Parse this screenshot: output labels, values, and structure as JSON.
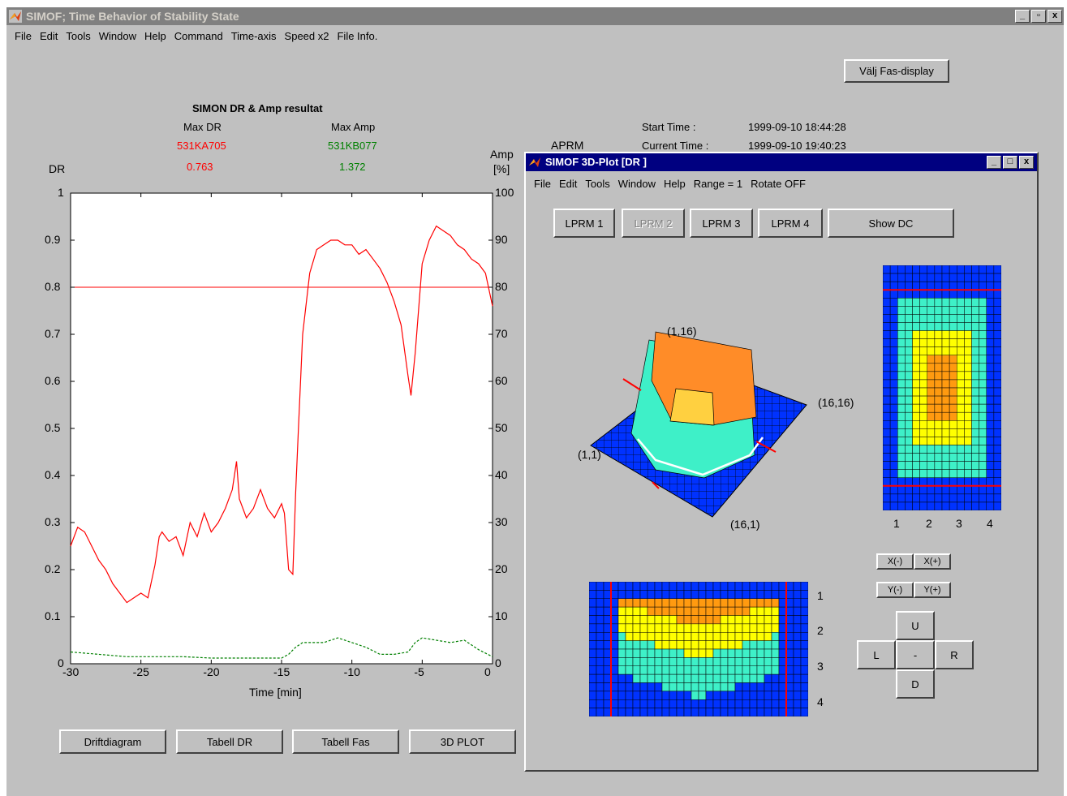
{
  "window": {
    "title": "SIMOF;    Time Behavior of Stability State",
    "controls": [
      "_",
      "▫",
      "x"
    ]
  },
  "menu": [
    "File",
    "Edit",
    "Tools",
    "Window",
    "Help",
    "Command",
    "Time-axis",
    "Speed x2",
    "File Info."
  ],
  "fas_button": "Välj Fas-display",
  "header": {
    "title": "SIMON DR & Amp resultat",
    "max_dr_label": "Max DR",
    "max_dr_channel": "531KA705",
    "max_dr_value": "0.763",
    "max_amp_label": "Max Amp",
    "max_amp_channel": "531KB077",
    "max_amp_value": "1.372",
    "aprm": "APRM",
    "start_label": "Start   Time :",
    "start_value": "1999-09-10 18:44:28",
    "current_label": "Current  Time :",
    "current_value": "1999-09-10 19:40:23"
  },
  "chart_data": {
    "type": "line",
    "xlabel": "Time [min]",
    "ylabel_left": "DR",
    "ylabel_right_1": "Amp",
    "ylabel_right_2": "[%]",
    "xlim": [
      -30,
      0
    ],
    "ylim": [
      0,
      1
    ],
    "ylim_right": [
      0,
      100
    ],
    "x_ticks": [
      "-30",
      "-25",
      "-20",
      "-15",
      "-10",
      "-5",
      "0"
    ],
    "y_ticks": [
      "0",
      "0.1",
      "0.2",
      "0.3",
      "0.4",
      "0.5",
      "0.6",
      "0.7",
      "0.8",
      "0.9",
      "1"
    ],
    "y_ticks_right": [
      "0",
      "10",
      "20",
      "30",
      "40",
      "50",
      "60",
      "70",
      "80",
      "90",
      "100"
    ],
    "threshold": 0.8,
    "series": [
      {
        "color": "#ff0000",
        "style": "solid",
        "x": [
          -30,
          -29.5,
          -29,
          -28.5,
          -28,
          -27.5,
          -27,
          -26.5,
          -26,
          -25.5,
          -25,
          -24.5,
          -24,
          -23.7,
          -23.5,
          -23,
          -22.5,
          -22,
          -21.5,
          -21,
          -20.5,
          -20,
          -19.5,
          -19,
          -18.5,
          -18.2,
          -18,
          -17.5,
          -17,
          -16.5,
          -16,
          -15.5,
          -15,
          -14.8,
          -14.5,
          -14.2,
          -14,
          -13.8,
          -13.5,
          -13,
          -12.5,
          -12,
          -11.5,
          -11,
          -10.5,
          -10,
          -9.5,
          -9,
          -8.5,
          -8,
          -7.5,
          -7,
          -6.5,
          -6,
          -5.8,
          -5.5,
          -5,
          -4.5,
          -4,
          -3.5,
          -3,
          -2.5,
          -2,
          -1.5,
          -1,
          -0.5,
          0
        ],
        "y": [
          0.25,
          0.29,
          0.28,
          0.25,
          0.22,
          0.2,
          0.17,
          0.15,
          0.13,
          0.14,
          0.15,
          0.14,
          0.21,
          0.27,
          0.28,
          0.26,
          0.27,
          0.23,
          0.3,
          0.27,
          0.32,
          0.28,
          0.3,
          0.33,
          0.37,
          0.43,
          0.35,
          0.31,
          0.33,
          0.37,
          0.33,
          0.31,
          0.34,
          0.32,
          0.2,
          0.19,
          0.36,
          0.5,
          0.7,
          0.83,
          0.88,
          0.89,
          0.9,
          0.9,
          0.89,
          0.89,
          0.87,
          0.88,
          0.86,
          0.84,
          0.81,
          0.77,
          0.72,
          0.61,
          0.57,
          0.66,
          0.85,
          0.9,
          0.93,
          0.92,
          0.91,
          0.89,
          0.88,
          0.86,
          0.85,
          0.83,
          0.76
        ]
      },
      {
        "color": "#008000",
        "style": "dashed",
        "x": [
          -30,
          -28,
          -26,
          -24,
          -22,
          -20,
          -18,
          -16,
          -15,
          -14.5,
          -14,
          -13.5,
          -13,
          -12,
          -11,
          -10,
          -9,
          -8,
          -7,
          -6,
          -5.5,
          -5,
          -4,
          -3,
          -2,
          -1,
          0
        ],
        "y": [
          0.025,
          0.02,
          0.015,
          0.015,
          0.015,
          0.012,
          0.012,
          0.012,
          0.012,
          0.02,
          0.035,
          0.045,
          0.045,
          0.045,
          0.055,
          0.045,
          0.035,
          0.02,
          0.02,
          0.025,
          0.045,
          0.055,
          0.05,
          0.045,
          0.05,
          0.03,
          0.015
        ]
      }
    ]
  },
  "bottom_buttons": [
    "Driftdiagram",
    "Tabell DR",
    "Tabell Fas",
    "3D PLOT"
  ],
  "child": {
    "title": "SIMOF 3D-Plot [DR ]",
    "menu": [
      "File",
      "Edit",
      "Tools",
      "Window",
      "Help",
      "Range = 1",
      "Rotate OFF"
    ],
    "lprm_buttons": [
      "LPRM 1",
      "LPRM 2",
      "LPRM 3",
      "LPRM 4"
    ],
    "show_dc": "Show DC",
    "corner_labels": {
      "a": "(1,16)",
      "b": "(16,16)",
      "c": "(1,1)",
      "d": "(16,1)"
    },
    "side_xticks": [
      "1",
      "2",
      "3",
      "4"
    ],
    "bottom_yticks": [
      "1",
      "2",
      "3",
      "4"
    ],
    "xminus": "X(-)",
    "xplus": "X(+)",
    "yminus": "Y(-)",
    "yplus": "Y(+)",
    "nav": {
      "up": "U",
      "left": "L",
      "center": "-",
      "right": "R",
      "down": "D"
    }
  }
}
